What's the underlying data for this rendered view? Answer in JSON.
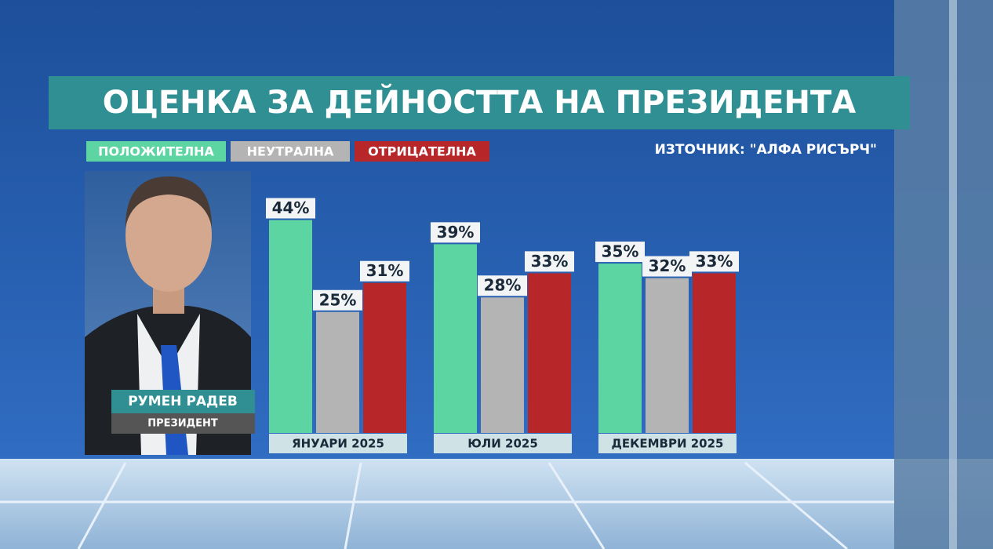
{
  "chart_data": {
    "type": "bar",
    "title": "ОЦЕНКА ЗА ДЕЙНОСТТА НА ПРЕЗИДЕНТА",
    "source": "ИЗТОЧНИК: \"АЛФА РИСЪРЧ\"",
    "person_name": "РУМЕН РАДЕВ",
    "person_role": "ПРЕЗИДЕНТ",
    "categories": [
      "ЯНУАРИ 2025",
      "ЮЛИ 2025",
      "ДЕКЕМВРИ 2025"
    ],
    "series": [
      {
        "name": "ПОЛОЖИТЕЛНА",
        "color": "#5dd5a3",
        "values": [
          44,
          39,
          35
        ],
        "value_labels": [
          "44%",
          "39%",
          "35%"
        ]
      },
      {
        "name": "НЕУТРАЛНА",
        "color": "#b4b4b4",
        "values": [
          25,
          28,
          32
        ],
        "value_labels": [
          "25%",
          "28%",
          "32%"
        ]
      },
      {
        "name": "ОТРИЦАТЕЛНА",
        "color": "#b7272a",
        "values": [
          31,
          33,
          33
        ],
        "value_labels": [
          "31%",
          "33%",
          "33%"
        ]
      }
    ]
  }
}
